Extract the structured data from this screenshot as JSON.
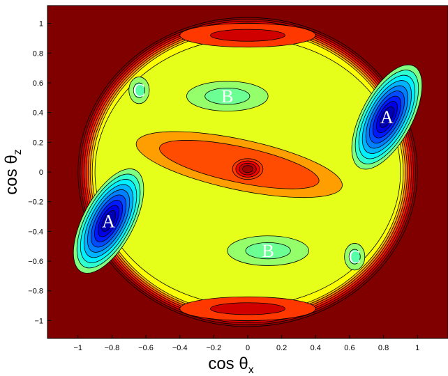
{
  "chart_data": {
    "type": "heatmap",
    "subtype": "filled-contour",
    "xlabel_base": "cos  θ",
    "xlabel_sub": "x",
    "ylabel_base": "cos  θ",
    "ylabel_sub": "z",
    "xlim": [
      -1.18,
      1.18
    ],
    "ylim": [
      -1.12,
      1.12
    ],
    "x_ticks": [
      -1,
      -0.8,
      -0.6,
      -0.4,
      -0.2,
      0,
      0.2,
      0.4,
      0.6,
      0.8,
      1
    ],
    "x_tick_labels": [
      "−1",
      "−0.8",
      "−0.6",
      "−0.4",
      "−0.2",
      "0",
      "0.2",
      "0.4",
      "0.6",
      "0.8",
      "1"
    ],
    "y_ticks": [
      1,
      0.8,
      0.6,
      0.4,
      0.2,
      0,
      -0.2,
      -0.4,
      -0.6,
      -0.8,
      -1
    ],
    "y_tick_labels": [
      "1",
      "0.8",
      "0.6",
      "0.4",
      "0.2",
      "0",
      "−0.2",
      "−0.4",
      "−0.6",
      "−0.8",
      "−1"
    ],
    "colormap": "jet",
    "background_color": "#800000",
    "region_labels": [
      {
        "text": "A",
        "x": 0.82,
        "y": 0.37
      },
      {
        "text": "A",
        "x": -0.82,
        "y": -0.33
      },
      {
        "text": "B",
        "x": -0.12,
        "y": 0.51
      },
      {
        "text": "B",
        "x": 0.12,
        "y": -0.53
      },
      {
        "text": "C",
        "x": -0.64,
        "y": 0.55
      },
      {
        "text": "C",
        "x": 0.63,
        "y": -0.57
      }
    ],
    "features": [
      {
        "kind": "minimum",
        "x": 0.82,
        "y": 0.37,
        "level": 0.05
      },
      {
        "kind": "minimum",
        "x": -0.82,
        "y": -0.33,
        "level": 0.05
      },
      {
        "kind": "minimum",
        "x": -0.12,
        "y": 0.51,
        "level": 0.48
      },
      {
        "kind": "minimum",
        "x": 0.12,
        "y": -0.53,
        "level": 0.48
      },
      {
        "kind": "minimum",
        "x": -0.64,
        "y": 0.55,
        "level": 0.46
      },
      {
        "kind": "minimum",
        "x": 0.63,
        "y": -0.57,
        "level": 0.46
      },
      {
        "kind": "maximum",
        "x": 0.0,
        "y": 0.02,
        "level": 0.97
      },
      {
        "kind": "maximum",
        "x": 0.0,
        "y": 0.92,
        "level": 0.92
      },
      {
        "kind": "maximum",
        "x": 0.0,
        "y": -0.92,
        "level": 0.92
      }
    ],
    "boundary_radius": 1.0,
    "grid": false
  }
}
